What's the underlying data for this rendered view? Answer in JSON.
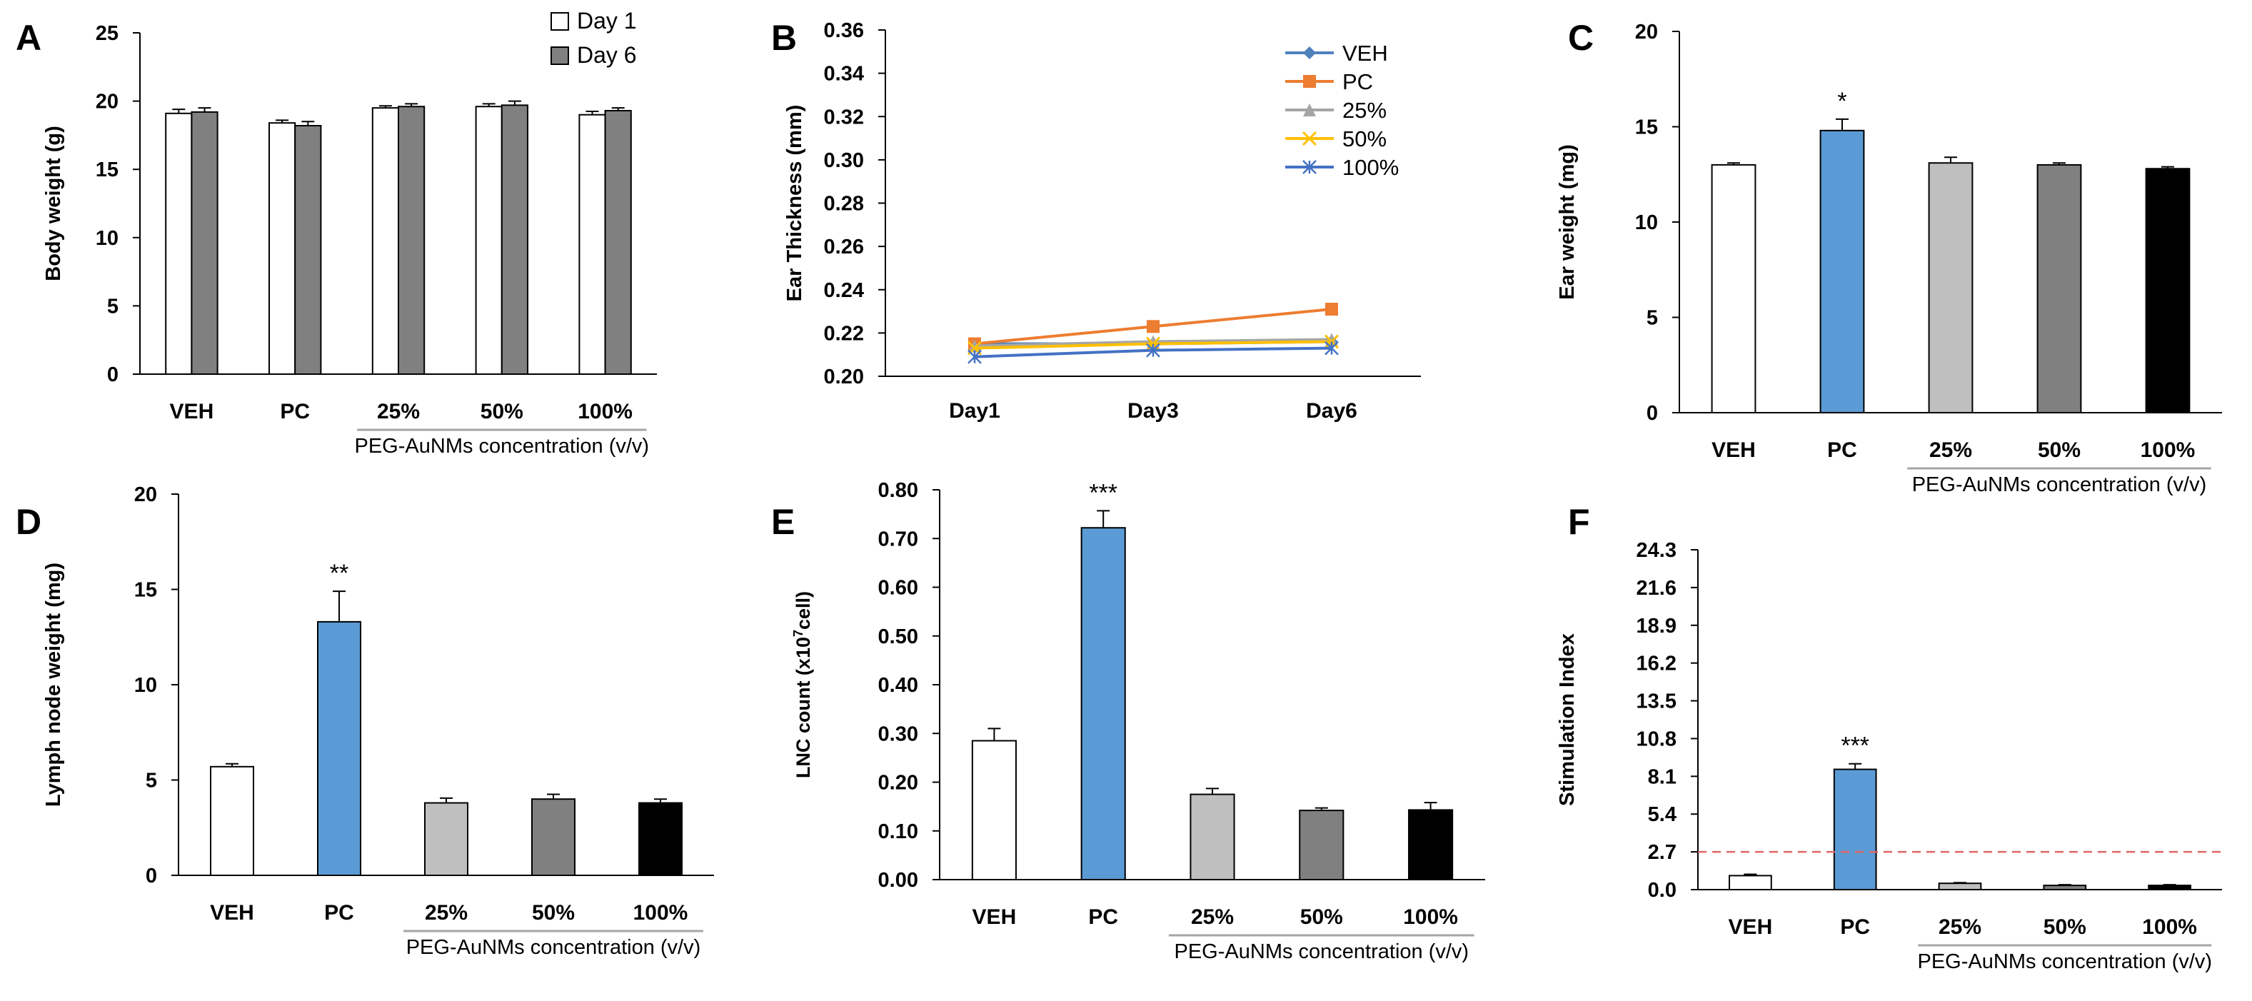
{
  "colors": {
    "white_bar": "#ffffff",
    "gray_bar": "#808080",
    "blue_bar": "#5b9bd5",
    "light_gray_bar": "#bfbfbf",
    "black_bar": "#000000",
    "axis": "#000000",
    "group_line": "#a6a6a6",
    "threshold_line": "#e06666",
    "series_veh": "#4472c4",
    "series_pc": "#ed7d31",
    "series_25": "#a5a5a5",
    "series_50": "#ffc000",
    "series_100": "#4472c4"
  },
  "chart_data": [
    {
      "id": "A",
      "type": "bar",
      "panel_label": "A",
      "ylabel": "Body weight (g)",
      "xlabel": "PEG-AuNMs concentration (v/v)",
      "categories": [
        "VEH",
        "PC",
        "25%",
        "50%",
        "100%"
      ],
      "group_label_categories": [
        "25%",
        "50%",
        "100%"
      ],
      "ylim": [
        0,
        25
      ],
      "yticks": [
        "0",
        "5",
        "10",
        "15",
        "20",
        "25"
      ],
      "legend": [
        "Day 1",
        "Day 6"
      ],
      "series": [
        {
          "name": "Day 1",
          "values": [
            19.1,
            18.4,
            19.5,
            19.6,
            19.0
          ],
          "errors": [
            0.3,
            0.2,
            0.15,
            0.2,
            0.25
          ],
          "color": "#ffffff"
        },
        {
          "name": "Day 6",
          "values": [
            19.2,
            18.2,
            19.6,
            19.7,
            19.3
          ],
          "errors": [
            0.3,
            0.3,
            0.2,
            0.3,
            0.2
          ],
          "color": "#808080"
        }
      ],
      "annotations": [
        "",
        "",
        "",
        "",
        ""
      ]
    },
    {
      "id": "B",
      "type": "line",
      "panel_label": "B",
      "ylabel": "Ear Thickness (mm)",
      "categories": [
        "Day1",
        "Day3",
        "Day6"
      ],
      "ylim": [
        0.2,
        0.36
      ],
      "yticks": [
        "0.20",
        "0.22",
        "0.24",
        "0.26",
        "0.28",
        "0.30",
        "0.32",
        "0.34",
        "0.36"
      ],
      "series": [
        {
          "name": "VEH",
          "values": [
            0.215,
            0.215,
            0.216
          ],
          "color": "#4f81bd",
          "marker": "diamond"
        },
        {
          "name": "PC",
          "values": [
            0.215,
            0.223,
            0.231
          ],
          "color": "#ed7d31",
          "marker": "square"
        },
        {
          "name": "25%",
          "values": [
            0.214,
            0.216,
            0.217
          ],
          "color": "#a5a5a5",
          "marker": "triangle"
        },
        {
          "name": "50%",
          "values": [
            0.213,
            0.215,
            0.216
          ],
          "color": "#ffc000",
          "marker": "x"
        },
        {
          "name": "100%",
          "values": [
            0.209,
            0.212,
            0.213
          ],
          "color": "#4472c4",
          "marker": "star"
        }
      ]
    },
    {
      "id": "C",
      "type": "bar",
      "panel_label": "C",
      "ylabel": "Ear weight (mg)",
      "xlabel": "PEG-AuNMs concentration (v/v)",
      "categories": [
        "VEH",
        "PC",
        "25%",
        "50%",
        "100%"
      ],
      "group_label_categories": [
        "25%",
        "50%",
        "100%"
      ],
      "ylim": [
        0,
        20
      ],
      "yticks": [
        "0",
        "5",
        "10",
        "15",
        "20"
      ],
      "series": [
        {
          "name": "Ear weight",
          "values": [
            13.0,
            14.8,
            13.1,
            13.0,
            12.8
          ],
          "errors": [
            0.1,
            0.6,
            0.3,
            0.1,
            0.1
          ],
          "colors": [
            "#ffffff",
            "#5b9bd5",
            "#bfbfbf",
            "#808080",
            "#000000"
          ]
        }
      ],
      "annotations": [
        "",
        "*",
        "",
        "",
        ""
      ]
    },
    {
      "id": "D",
      "type": "bar",
      "panel_label": "D",
      "ylabel": "Lymph node weight (mg)",
      "xlabel": "PEG-AuNMs concentration (v/v)",
      "categories": [
        "VEH",
        "PC",
        "25%",
        "50%",
        "100%"
      ],
      "group_label_categories": [
        "25%",
        "50%",
        "100%"
      ],
      "ylim": [
        0,
        20
      ],
      "yticks": [
        "0",
        "5",
        "10",
        "15",
        "20"
      ],
      "series": [
        {
          "name": "Lymph node weight",
          "values": [
            5.7,
            13.3,
            3.8,
            4.0,
            3.8
          ],
          "errors": [
            0.15,
            1.6,
            0.25,
            0.25,
            0.2
          ],
          "colors": [
            "#ffffff",
            "#5b9bd5",
            "#bfbfbf",
            "#808080",
            "#000000"
          ]
        }
      ],
      "annotations": [
        "",
        "**",
        "",
        "",
        ""
      ]
    },
    {
      "id": "E",
      "type": "bar",
      "panel_label": "E",
      "ylabel_main": "LNC count (x10",
      "ylabel_sup": "7",
      "ylabel_end": "cell)",
      "xlabel": "PEG-AuNMs concentration (v/v)",
      "categories": [
        "VEH",
        "PC",
        "25%",
        "50%",
        "100%"
      ],
      "group_label_categories": [
        "25%",
        "50%",
        "100%"
      ],
      "ylim": [
        0,
        0.8
      ],
      "yticks": [
        "0.00",
        "0.10",
        "0.20",
        "0.30",
        "0.40",
        "0.50",
        "0.60",
        "0.70",
        "0.80"
      ],
      "series": [
        {
          "name": "LNC count",
          "values": [
            0.285,
            0.722,
            0.175,
            0.142,
            0.143
          ],
          "errors": [
            0.025,
            0.035,
            0.012,
            0.005,
            0.015
          ],
          "colors": [
            "#ffffff",
            "#5b9bd5",
            "#bfbfbf",
            "#808080",
            "#000000"
          ]
        }
      ],
      "annotations": [
        "",
        "***",
        "",
        "",
        ""
      ]
    },
    {
      "id": "F",
      "type": "bar",
      "panel_label": "F",
      "ylabel": "Stimulation Index",
      "xlabel": "PEG-AuNMs concentration (v/v)",
      "categories": [
        "VEH",
        "PC",
        "25%",
        "50%",
        "100%"
      ],
      "group_label_categories": [
        "25%",
        "50%",
        "100%"
      ],
      "ylim": [
        0,
        24.3
      ],
      "yticks": [
        "0.0",
        "2.7",
        "5.4",
        "8.1",
        "10.8",
        "13.5",
        "16.2",
        "18.9",
        "21.6",
        "24.3"
      ],
      "threshold": 2.7,
      "series": [
        {
          "name": "Stimulation Index",
          "values": [
            1.0,
            8.6,
            0.45,
            0.3,
            0.3
          ],
          "errors": [
            0.1,
            0.4,
            0.05,
            0.05,
            0.05
          ],
          "colors": [
            "#ffffff",
            "#5b9bd5",
            "#bfbfbf",
            "#808080",
            "#000000"
          ]
        }
      ],
      "annotations": [
        "",
        "***",
        "",
        "",
        ""
      ]
    }
  ]
}
